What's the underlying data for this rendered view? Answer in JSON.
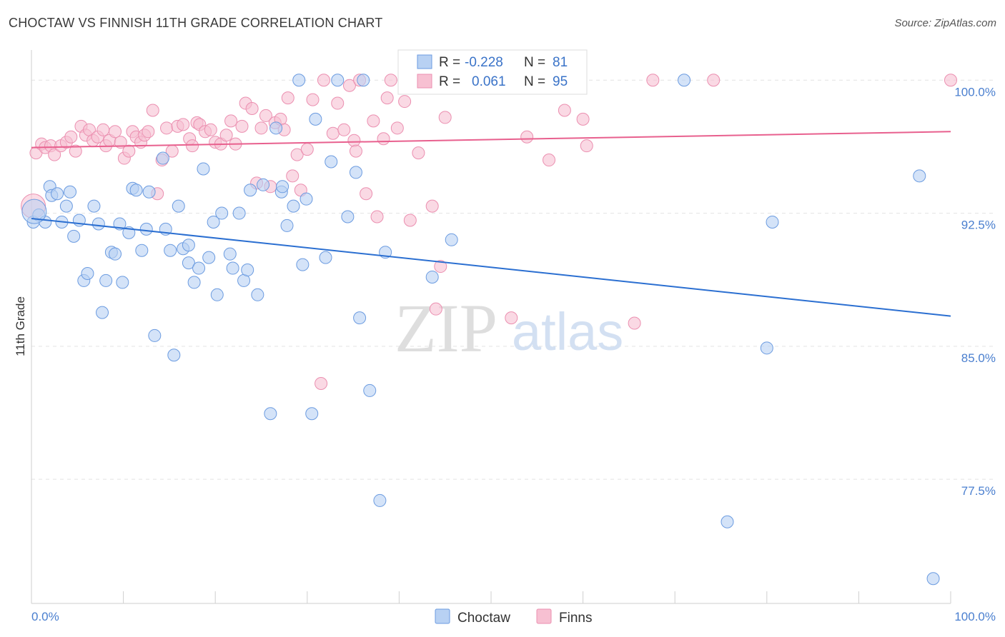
{
  "header": {
    "title": "CHOCTAW VS FINNISH 11TH GRADE CORRELATION CHART",
    "source": "Source: ZipAtlas.com"
  },
  "watermark": {
    "zip": "ZIP",
    "atlas": "atlas"
  },
  "colors": {
    "choctaw_fill": "#b8d1f3",
    "choctaw_stroke": "#6b9be0",
    "choctaw_line": "#2b6fd1",
    "finns_fill": "#f7c0d2",
    "finns_stroke": "#eb8fb0",
    "finns_line": "#e8608e",
    "tick_label": "#4a7fcf"
  },
  "legend": {
    "rows": [
      {
        "r_label": "R =",
        "r_value": "-0.228",
        "n_label": "N =",
        "n_value": "81"
      },
      {
        "r_label": "R =",
        "r_value": "0.061",
        "n_label": "N =",
        "n_value": "95"
      }
    ]
  },
  "chart_data": {
    "type": "scatter",
    "title": "CHOCTAW VS FINNISH 11TH GRADE CORRELATION CHART",
    "xlabel": "",
    "ylabel": "11th Grade",
    "xlim": [
      0,
      100
    ],
    "ylim": [
      70.5,
      101.5
    ],
    "x_tick_labels": [
      "0.0%",
      "100.0%"
    ],
    "y_ticks": [
      77.5,
      85.0,
      92.5,
      100.0
    ],
    "y_tick_labels": [
      "77.5%",
      "85.0%",
      "92.5%",
      "100.0%"
    ],
    "grid": true,
    "legend_position": "bottom-center",
    "series": [
      {
        "name": "Choctaw",
        "r": -0.228,
        "n": 81,
        "trend": {
          "x": [
            0,
            100
          ],
          "y": [
            92.2,
            86.7
          ]
        },
        "points": [
          [
            0.2,
            92.0
          ],
          [
            0.8,
            92.4
          ],
          [
            1.5,
            92.0
          ],
          [
            2.0,
            94.0
          ],
          [
            2.2,
            93.5
          ],
          [
            2.8,
            93.6
          ],
          [
            3.3,
            92.0
          ],
          [
            3.8,
            92.9
          ],
          [
            4.2,
            93.7
          ],
          [
            4.6,
            91.2
          ],
          [
            5.2,
            92.1
          ],
          [
            5.7,
            88.7
          ],
          [
            6.1,
            89.1
          ],
          [
            6.8,
            92.9
          ],
          [
            7.3,
            91.9
          ],
          [
            7.7,
            86.9
          ],
          [
            8.1,
            88.7
          ],
          [
            8.7,
            90.3
          ],
          [
            9.1,
            90.2
          ],
          [
            9.6,
            91.9
          ],
          [
            9.9,
            88.6
          ],
          [
            10.6,
            91.4
          ],
          [
            11.0,
            93.9
          ],
          [
            11.4,
            93.8
          ],
          [
            12.0,
            90.4
          ],
          [
            12.5,
            91.6
          ],
          [
            12.8,
            93.7
          ],
          [
            13.4,
            85.6
          ],
          [
            14.3,
            95.6
          ],
          [
            14.6,
            91.6
          ],
          [
            15.1,
            90.4
          ],
          [
            15.5,
            84.5
          ],
          [
            16.0,
            92.9
          ],
          [
            16.5,
            90.5
          ],
          [
            17.1,
            90.7
          ],
          [
            17.1,
            89.7
          ],
          [
            17.7,
            88.6
          ],
          [
            18.2,
            89.4
          ],
          [
            18.7,
            95.0
          ],
          [
            19.3,
            90.0
          ],
          [
            19.8,
            92.0
          ],
          [
            20.2,
            87.9
          ],
          [
            20.7,
            92.5
          ],
          [
            21.6,
            90.2
          ],
          [
            21.9,
            89.4
          ],
          [
            22.6,
            92.5
          ],
          [
            23.1,
            88.7
          ],
          [
            23.5,
            89.3
          ],
          [
            23.8,
            93.8
          ],
          [
            24.6,
            87.9
          ],
          [
            25.2,
            94.1
          ],
          [
            26.0,
            81.2
          ],
          [
            26.6,
            97.3
          ],
          [
            27.2,
            93.7
          ],
          [
            27.3,
            94.0
          ],
          [
            27.8,
            91.8
          ],
          [
            28.5,
            92.9
          ],
          [
            29.1,
            100.0
          ],
          [
            29.5,
            89.6
          ],
          [
            29.9,
            93.3
          ],
          [
            30.5,
            81.2
          ],
          [
            30.9,
            97.8
          ],
          [
            32.0,
            90.0
          ],
          [
            32.6,
            95.4
          ],
          [
            33.3,
            100.0
          ],
          [
            34.4,
            92.3
          ],
          [
            35.3,
            94.8
          ],
          [
            35.7,
            86.6
          ],
          [
            36.1,
            100.0
          ],
          [
            36.8,
            82.5
          ],
          [
            37.9,
            76.3
          ],
          [
            38.5,
            90.3
          ],
          [
            43.6,
            88.9
          ],
          [
            45.7,
            91.0
          ],
          [
            71.0,
            100.0
          ],
          [
            75.7,
            75.1
          ],
          [
            80.0,
            84.9
          ],
          [
            80.6,
            92.0
          ],
          [
            96.6,
            94.6
          ],
          [
            98.1,
            71.9
          ],
          [
            0.3,
            92.6
          ]
        ]
      },
      {
        "name": "Finns",
        "r": 0.061,
        "n": 95,
        "trend": {
          "x": [
            0,
            100
          ],
          "y": [
            96.2,
            97.1
          ]
        },
        "points": [
          [
            0.5,
            95.9
          ],
          [
            1.1,
            96.4
          ],
          [
            1.5,
            96.2
          ],
          [
            2.1,
            96.3
          ],
          [
            2.5,
            95.8
          ],
          [
            3.2,
            96.3
          ],
          [
            3.8,
            96.5
          ],
          [
            4.3,
            96.8
          ],
          [
            4.8,
            96.0
          ],
          [
            5.4,
            97.4
          ],
          [
            5.9,
            96.9
          ],
          [
            6.3,
            97.2
          ],
          [
            6.7,
            96.6
          ],
          [
            7.2,
            96.8
          ],
          [
            7.8,
            97.2
          ],
          [
            8.1,
            96.3
          ],
          [
            8.5,
            96.6
          ],
          [
            9.1,
            97.1
          ],
          [
            9.7,
            96.5
          ],
          [
            10.1,
            95.6
          ],
          [
            10.6,
            96.0
          ],
          [
            11.0,
            97.1
          ],
          [
            11.4,
            96.8
          ],
          [
            11.9,
            96.5
          ],
          [
            12.3,
            96.9
          ],
          [
            12.7,
            97.1
          ],
          [
            13.2,
            98.3
          ],
          [
            13.7,
            93.6
          ],
          [
            14.2,
            95.5
          ],
          [
            14.7,
            97.3
          ],
          [
            15.3,
            96.0
          ],
          [
            15.9,
            97.4
          ],
          [
            16.5,
            97.5
          ],
          [
            17.2,
            96.7
          ],
          [
            17.5,
            96.3
          ],
          [
            18.0,
            97.6
          ],
          [
            18.3,
            97.5
          ],
          [
            18.9,
            97.1
          ],
          [
            19.5,
            97.2
          ],
          [
            20.0,
            96.5
          ],
          [
            20.6,
            96.4
          ],
          [
            21.2,
            96.9
          ],
          [
            21.7,
            97.7
          ],
          [
            22.2,
            96.4
          ],
          [
            22.9,
            97.4
          ],
          [
            23.3,
            98.7
          ],
          [
            24.0,
            98.4
          ],
          [
            24.5,
            94.2
          ],
          [
            25.0,
            97.3
          ],
          [
            25.5,
            98.0
          ],
          [
            26.0,
            94.0
          ],
          [
            26.5,
            97.6
          ],
          [
            27.1,
            97.8
          ],
          [
            27.5,
            97.2
          ],
          [
            27.9,
            99.0
          ],
          [
            28.4,
            94.6
          ],
          [
            28.9,
            95.8
          ],
          [
            29.3,
            93.8
          ],
          [
            30.0,
            96.1
          ],
          [
            30.6,
            98.9
          ],
          [
            31.5,
            82.9
          ],
          [
            31.8,
            100.0
          ],
          [
            32.8,
            97.0
          ],
          [
            33.3,
            98.7
          ],
          [
            34.0,
            97.2
          ],
          [
            34.6,
            99.7
          ],
          [
            35.1,
            96.6
          ],
          [
            35.3,
            96.0
          ],
          [
            35.7,
            100.0
          ],
          [
            36.4,
            93.6
          ],
          [
            37.2,
            97.7
          ],
          [
            37.6,
            92.3
          ],
          [
            38.3,
            96.7
          ],
          [
            38.7,
            99.0
          ],
          [
            39.1,
            100.0
          ],
          [
            39.8,
            97.3
          ],
          [
            40.6,
            98.8
          ],
          [
            41.2,
            92.1
          ],
          [
            42.1,
            95.9
          ],
          [
            43.6,
            92.9
          ],
          [
            44.0,
            87.1
          ],
          [
            44.5,
            89.5
          ],
          [
            45.0,
            97.9
          ],
          [
            46.6,
            100.0
          ],
          [
            52.2,
            86.6
          ],
          [
            53.9,
            96.8
          ],
          [
            56.3,
            95.5
          ],
          [
            58.0,
            98.3
          ],
          [
            60.0,
            97.8
          ],
          [
            60.4,
            96.3
          ],
          [
            65.6,
            86.3
          ],
          [
            67.6,
            100.0
          ],
          [
            74.2,
            100.0
          ],
          [
            100.0,
            100.0
          ],
          [
            0.2,
            92.9
          ]
        ]
      }
    ]
  }
}
